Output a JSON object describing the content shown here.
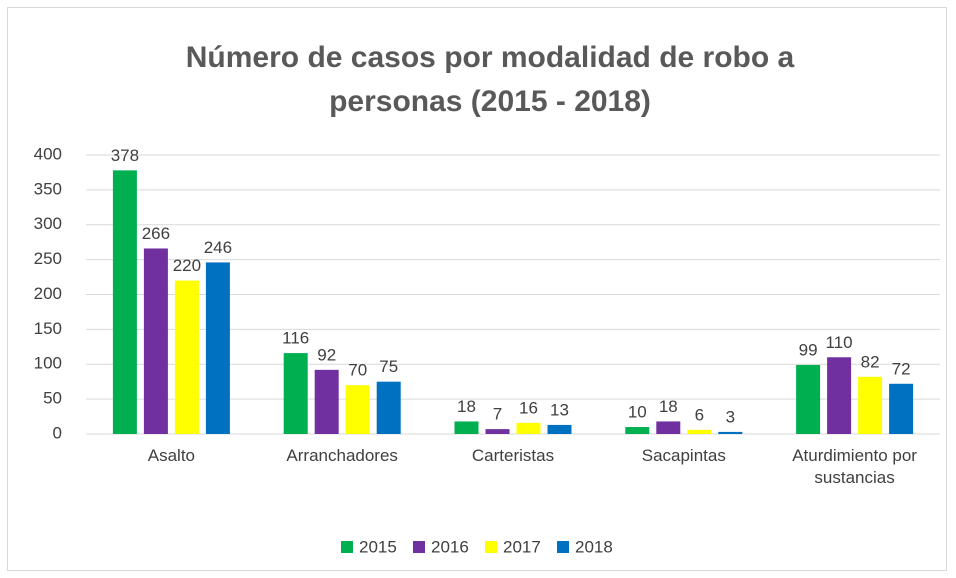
{
  "chart_data": {
    "type": "bar",
    "title": "Número de casos por modalidad de robo a personas (2015 - 2018)",
    "categories": [
      "Asalto",
      "Arranchadores",
      "Carteristas",
      "Sacapintas",
      "Aturdimiento por sustancias"
    ],
    "series": [
      {
        "name": "2015",
        "color": "#00b050",
        "values": [
          378,
          116,
          18,
          10,
          99
        ]
      },
      {
        "name": "2016",
        "color": "#7030a0",
        "values": [
          266,
          92,
          7,
          18,
          110
        ]
      },
      {
        "name": "2017",
        "color": "#ffff00",
        "values": [
          220,
          70,
          16,
          6,
          82
        ]
      },
      {
        "name": "2018",
        "color": "#0070c0",
        "values": [
          246,
          75,
          13,
          3,
          72
        ]
      }
    ],
    "ylim": [
      0,
      400
    ],
    "yticks": [
      0,
      50,
      100,
      150,
      200,
      250,
      300,
      350,
      400
    ],
    "grid": true,
    "legend": "bottom"
  }
}
